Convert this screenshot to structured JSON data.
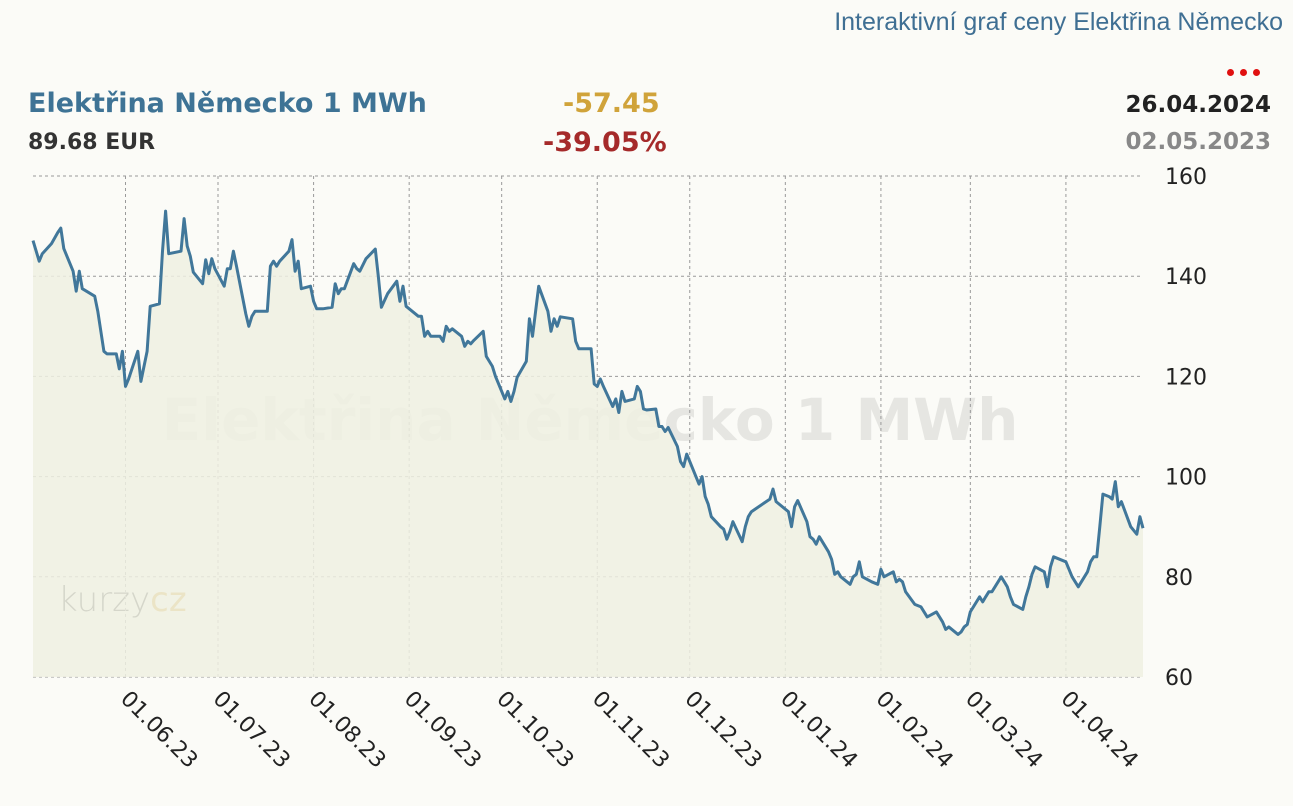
{
  "header": {
    "link": "Interaktivní graf ceny Elektřina Německo",
    "title": "Elektřina Německo 1 MWh",
    "price": "89.68 EUR",
    "change_abs": "-57.45",
    "change_pct": "-39.05%",
    "date_end": "26.04.2024",
    "date_start": "02.05.2023",
    "watermark": "Elektřina Německo 1 MWh",
    "logo": "kurzycz"
  },
  "colors": {
    "line": "#41779a",
    "fill": "#eef0e2",
    "up": "#d0a33a",
    "down": "#a52a2a"
  },
  "chart_data": {
    "type": "area",
    "title": "Elektřina Německo 1 MWh",
    "xlabel": "",
    "ylabel": "",
    "x_range": [
      "2023-05-02",
      "2024-04-26"
    ],
    "ylim": [
      60,
      160
    ],
    "y_ticks": [
      160,
      140,
      120,
      100,
      80,
      60
    ],
    "x_ticks": [
      {
        "date": "2023-06-01",
        "label": "01.06.23"
      },
      {
        "date": "2023-07-01",
        "label": "01.07.23"
      },
      {
        "date": "2023-08-01",
        "label": "01.08.23"
      },
      {
        "date": "2023-09-01",
        "label": "01.09.23"
      },
      {
        "date": "2023-10-01",
        "label": "01.10.23"
      },
      {
        "date": "2023-11-01",
        "label": "01.11.23"
      },
      {
        "date": "2023-12-01",
        "label": "01.12.23"
      },
      {
        "date": "2024-01-01",
        "label": "01.01.24"
      },
      {
        "date": "2024-02-01",
        "label": "01.02.24"
      },
      {
        "date": "2024-03-01",
        "label": "01.03.24"
      },
      {
        "date": "2024-04-01",
        "label": "01.04.24"
      }
    ],
    "grid": true,
    "series": [
      {
        "points": [
          [
            "2023-05-02",
            147.1
          ],
          [
            "2023-05-04",
            143
          ],
          [
            "2023-05-05",
            144.5
          ],
          [
            "2023-05-08",
            146.5
          ],
          [
            "2023-05-10",
            148.7
          ],
          [
            "2023-05-11",
            149.6
          ],
          [
            "2023-05-12",
            145.5
          ],
          [
            "2023-05-15",
            141
          ],
          [
            "2023-05-16",
            137
          ],
          [
            "2023-05-17",
            141
          ],
          [
            "2023-05-18",
            137.5
          ],
          [
            "2023-05-22",
            136
          ],
          [
            "2023-05-23",
            133
          ],
          [
            "2023-05-25",
            125
          ],
          [
            "2023-05-26",
            124.5
          ],
          [
            "2023-05-29",
            124.5
          ],
          [
            "2023-05-30",
            121.5
          ],
          [
            "2023-05-31",
            125
          ],
          [
            "2023-06-01",
            118
          ],
          [
            "2023-06-02",
            119.5
          ],
          [
            "2023-06-05",
            125
          ],
          [
            "2023-06-06",
            119
          ],
          [
            "2023-06-08",
            125
          ],
          [
            "2023-06-09",
            134
          ],
          [
            "2023-06-12",
            134.5
          ],
          [
            "2023-06-13",
            145
          ],
          [
            "2023-06-14",
            153
          ],
          [
            "2023-06-15",
            144.5
          ],
          [
            "2023-06-19",
            145
          ],
          [
            "2023-06-20",
            151.5
          ],
          [
            "2023-06-21",
            146
          ],
          [
            "2023-06-22",
            144
          ],
          [
            "2023-06-23",
            140.8
          ],
          [
            "2023-06-26",
            138.5
          ],
          [
            "2023-06-27",
            143.3
          ],
          [
            "2023-06-28",
            140.5
          ],
          [
            "2023-06-29",
            143.5
          ],
          [
            "2023-06-30",
            141.5
          ],
          [
            "2023-07-03",
            138
          ],
          [
            "2023-07-04",
            141.5
          ],
          [
            "2023-07-05",
            141.5
          ],
          [
            "2023-07-06",
            145
          ],
          [
            "2023-07-07",
            142
          ],
          [
            "2023-07-10",
            132.5
          ],
          [
            "2023-07-11",
            130
          ],
          [
            "2023-07-12",
            132
          ],
          [
            "2023-07-13",
            133
          ],
          [
            "2023-07-17",
            133
          ],
          [
            "2023-07-18",
            142
          ],
          [
            "2023-07-19",
            143
          ],
          [
            "2023-07-20",
            142
          ],
          [
            "2023-07-21",
            143
          ],
          [
            "2023-07-24",
            145
          ],
          [
            "2023-07-25",
            147.3
          ],
          [
            "2023-07-26",
            141
          ],
          [
            "2023-07-27",
            143
          ],
          [
            "2023-07-28",
            137.5
          ],
          [
            "2023-07-31",
            138
          ],
          [
            "2023-08-01",
            135
          ],
          [
            "2023-08-02",
            133.5
          ],
          [
            "2023-08-03",
            133.5
          ],
          [
            "2023-08-04",
            133.5
          ],
          [
            "2023-08-07",
            133.8
          ],
          [
            "2023-08-08",
            138.5
          ],
          [
            "2023-08-09",
            136.5
          ],
          [
            "2023-08-10",
            137.5
          ],
          [
            "2023-08-11",
            137.5
          ],
          [
            "2023-08-14",
            142.5
          ],
          [
            "2023-08-15",
            141.5
          ],
          [
            "2023-08-16",
            141
          ],
          [
            "2023-08-18",
            143.5
          ],
          [
            "2023-08-21",
            145.4
          ],
          [
            "2023-08-22",
            140
          ],
          [
            "2023-08-23",
            133.8
          ],
          [
            "2023-08-25",
            136.5
          ],
          [
            "2023-08-28",
            139
          ],
          [
            "2023-08-29",
            135
          ],
          [
            "2023-08-30",
            138
          ],
          [
            "2023-08-31",
            134
          ],
          [
            "2023-09-01",
            133.5
          ],
          [
            "2023-09-04",
            132
          ],
          [
            "2023-09-05",
            132
          ],
          [
            "2023-09-06",
            128
          ],
          [
            "2023-09-07",
            129
          ],
          [
            "2023-09-08",
            128
          ],
          [
            "2023-09-11",
            128
          ],
          [
            "2023-09-12",
            127
          ],
          [
            "2023-09-13",
            130
          ],
          [
            "2023-09-14",
            129
          ],
          [
            "2023-09-15",
            129.5
          ],
          [
            "2023-09-18",
            128
          ],
          [
            "2023-09-19",
            126
          ],
          [
            "2023-09-20",
            127
          ],
          [
            "2023-09-21",
            126.5
          ],
          [
            "2023-09-22",
            127.2
          ],
          [
            "2023-09-25",
            129
          ],
          [
            "2023-09-26",
            124
          ],
          [
            "2023-09-28",
            122
          ],
          [
            "2023-09-29",
            120
          ],
          [
            "2023-10-02",
            115.5
          ],
          [
            "2023-10-03",
            117
          ],
          [
            "2023-10-04",
            115
          ],
          [
            "2023-10-05",
            117
          ],
          [
            "2023-10-06",
            119.8
          ],
          [
            "2023-10-09",
            123
          ],
          [
            "2023-10-10",
            131.5
          ],
          [
            "2023-10-11",
            128
          ],
          [
            "2023-10-12",
            133
          ],
          [
            "2023-10-13",
            138
          ],
          [
            "2023-10-16",
            133
          ],
          [
            "2023-10-17",
            129
          ],
          [
            "2023-10-18",
            131.5
          ],
          [
            "2023-10-19",
            130
          ],
          [
            "2023-10-20",
            131.9
          ],
          [
            "2023-10-24",
            131.5
          ],
          [
            "2023-10-25",
            127
          ],
          [
            "2023-10-26",
            125.5
          ],
          [
            "2023-10-27",
            125.5
          ],
          [
            "2023-10-30",
            125.5
          ],
          [
            "2023-10-31",
            118.5
          ],
          [
            "2023-11-01",
            118
          ],
          [
            "2023-11-02",
            119.5
          ],
          [
            "2023-11-03",
            118
          ],
          [
            "2023-11-06",
            114
          ],
          [
            "2023-11-07",
            115.5
          ],
          [
            "2023-11-08",
            112.8
          ],
          [
            "2023-11-09",
            117
          ],
          [
            "2023-11-10",
            115
          ],
          [
            "2023-11-13",
            115.5
          ],
          [
            "2023-11-14",
            118
          ],
          [
            "2023-11-15",
            117
          ],
          [
            "2023-11-16",
            113.5
          ],
          [
            "2023-11-17",
            113.3
          ],
          [
            "2023-11-20",
            113.5
          ],
          [
            "2023-11-21",
            110
          ],
          [
            "2023-11-22",
            110
          ],
          [
            "2023-11-23",
            109
          ],
          [
            "2023-11-24",
            109.8
          ],
          [
            "2023-11-27",
            106
          ],
          [
            "2023-11-28",
            103
          ],
          [
            "2023-11-29",
            102
          ],
          [
            "2023-11-30",
            104.5
          ],
          [
            "2023-12-01",
            103
          ],
          [
            "2023-12-04",
            98.5
          ],
          [
            "2023-12-05",
            100
          ],
          [
            "2023-12-06",
            96
          ],
          [
            "2023-12-07",
            94.5
          ],
          [
            "2023-12-08",
            92
          ],
          [
            "2023-12-11",
            90
          ],
          [
            "2023-12-12",
            89.5
          ],
          [
            "2023-12-13",
            87.5
          ],
          [
            "2023-12-14",
            89
          ],
          [
            "2023-12-15",
            91
          ],
          [
            "2023-12-18",
            87
          ],
          [
            "2023-12-19",
            90
          ],
          [
            "2023-12-20",
            92
          ],
          [
            "2023-12-21",
            93
          ],
          [
            "2023-12-27",
            95.5
          ],
          [
            "2023-12-28",
            97.5
          ],
          [
            "2023-12-29",
            95
          ],
          [
            "2024-01-02",
            93
          ],
          [
            "2024-01-03",
            90
          ],
          [
            "2024-01-04",
            94
          ],
          [
            "2024-01-05",
            95.2
          ],
          [
            "2024-01-08",
            91
          ],
          [
            "2024-01-09",
            88
          ],
          [
            "2024-01-10",
            87.5
          ],
          [
            "2024-01-11",
            86.5
          ],
          [
            "2024-01-12",
            88
          ],
          [
            "2024-01-15",
            85
          ],
          [
            "2024-01-16",
            83.5
          ],
          [
            "2024-01-17",
            80.5
          ],
          [
            "2024-01-18",
            81
          ],
          [
            "2024-01-19",
            80
          ],
          [
            "2024-01-22",
            78.5
          ],
          [
            "2024-01-23",
            80
          ],
          [
            "2024-01-24",
            80.5
          ],
          [
            "2024-01-25",
            83
          ],
          [
            "2024-01-26",
            80
          ],
          [
            "2024-01-29",
            79
          ],
          [
            "2024-01-31",
            78.5
          ],
          [
            "2024-02-01",
            81.5
          ],
          [
            "2024-02-02",
            80
          ],
          [
            "2024-02-05",
            81
          ],
          [
            "2024-02-06",
            79
          ],
          [
            "2024-02-07",
            79.5
          ],
          [
            "2024-02-08",
            79
          ],
          [
            "2024-02-09",
            77
          ],
          [
            "2024-02-12",
            74.5
          ],
          [
            "2024-02-14",
            74
          ],
          [
            "2024-02-15",
            73
          ],
          [
            "2024-02-16",
            72
          ],
          [
            "2024-02-19",
            73
          ],
          [
            "2024-02-20",
            72
          ],
          [
            "2024-02-21",
            71
          ],
          [
            "2024-02-22",
            69.5
          ],
          [
            "2024-02-23",
            70
          ],
          [
            "2024-02-26",
            68.5
          ],
          [
            "2024-02-27",
            69
          ],
          [
            "2024-02-28",
            70
          ],
          [
            "2024-02-29",
            70.5
          ],
          [
            "2024-03-01",
            73
          ],
          [
            "2024-03-04",
            76
          ],
          [
            "2024-03-05",
            75
          ],
          [
            "2024-03-06",
            76
          ],
          [
            "2024-03-07",
            77
          ],
          [
            "2024-03-08",
            77
          ],
          [
            "2024-03-11",
            80
          ],
          [
            "2024-03-12",
            79
          ],
          [
            "2024-03-13",
            78
          ],
          [
            "2024-03-14",
            76
          ],
          [
            "2024-03-15",
            74.5
          ],
          [
            "2024-03-18",
            73.5
          ],
          [
            "2024-03-19",
            76
          ],
          [
            "2024-03-20",
            78
          ],
          [
            "2024-03-21",
            80.5
          ],
          [
            "2024-03-22",
            82
          ],
          [
            "2024-03-25",
            81
          ],
          [
            "2024-03-26",
            78
          ],
          [
            "2024-03-27",
            82
          ],
          [
            "2024-03-28",
            84
          ],
          [
            "2024-04-01",
            83
          ],
          [
            "2024-04-02",
            81.5
          ],
          [
            "2024-04-03",
            80
          ],
          [
            "2024-04-04",
            79
          ],
          [
            "2024-04-05",
            78
          ],
          [
            "2024-04-08",
            81
          ],
          [
            "2024-04-09",
            83
          ],
          [
            "2024-04-10",
            84
          ],
          [
            "2024-04-11",
            84
          ],
          [
            "2024-04-12",
            90
          ],
          [
            "2024-04-13",
            96.5
          ],
          [
            "2024-04-15",
            96
          ],
          [
            "2024-04-16",
            95.5
          ],
          [
            "2024-04-17",
            99
          ],
          [
            "2024-04-18",
            94
          ],
          [
            "2024-04-19",
            95
          ],
          [
            "2024-04-22",
            90
          ],
          [
            "2024-04-24",
            88.5
          ],
          [
            "2024-04-25",
            92
          ],
          [
            "2024-04-26",
            89.7
          ]
        ]
      }
    ]
  }
}
